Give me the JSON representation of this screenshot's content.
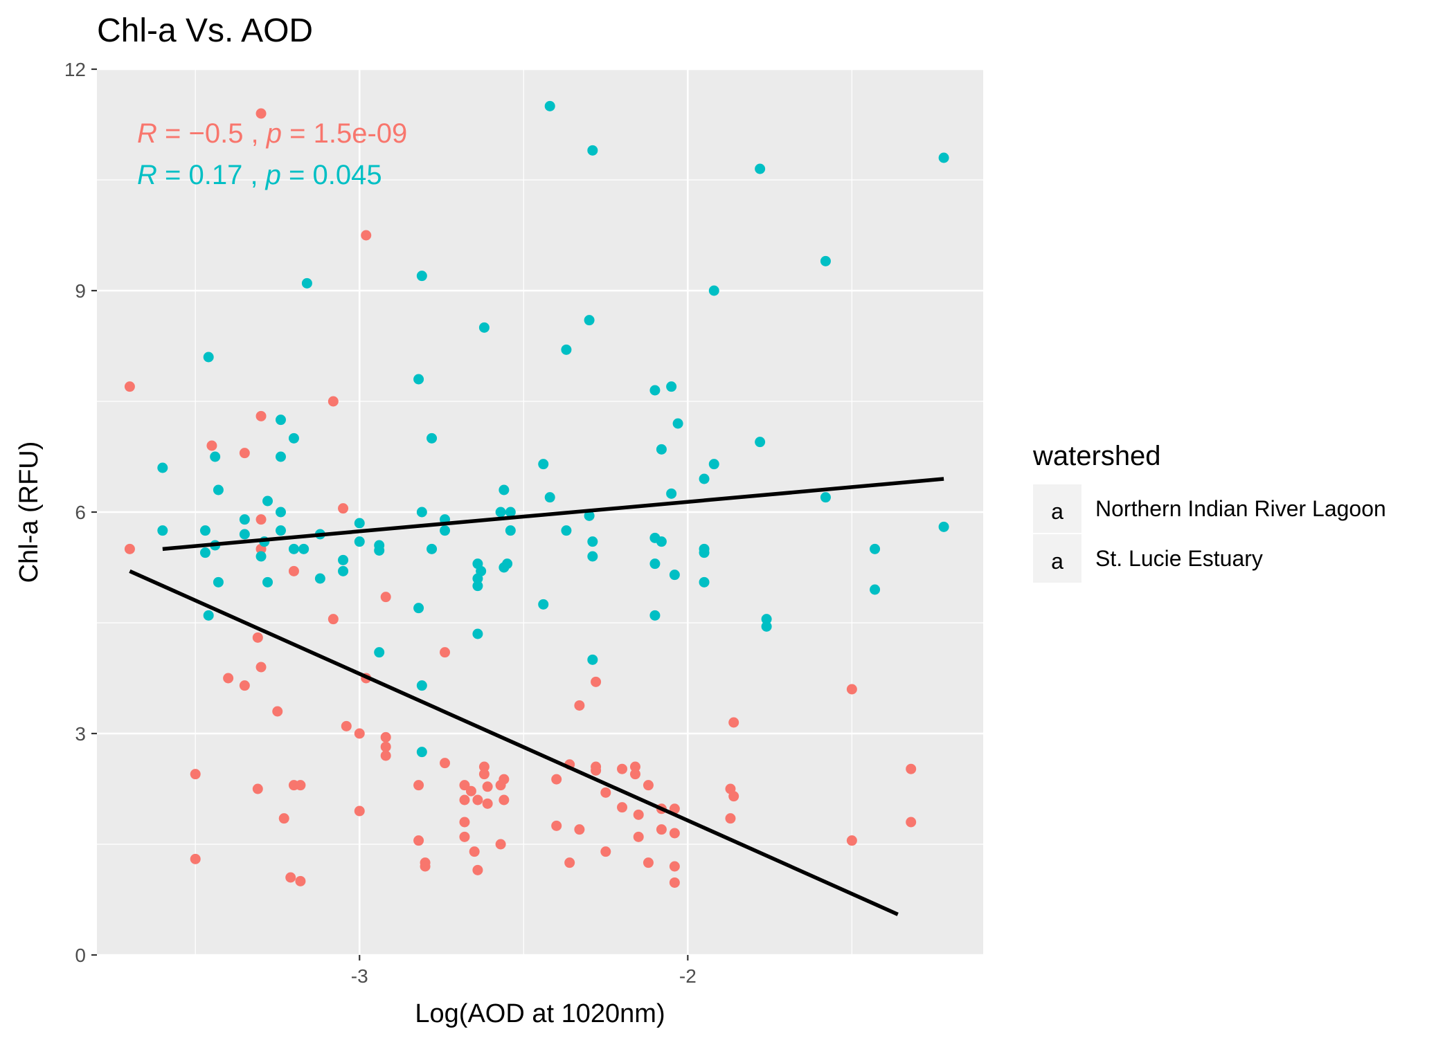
{
  "chart_data": {
    "type": "scatter",
    "title": "Chl-a Vs. AOD",
    "xlabel": "Log(AOD at 1020nm)",
    "ylabel": "Chl-a (RFU)",
    "xlim": [
      -3.8,
      -1.1
    ],
    "ylim": [
      0,
      12
    ],
    "x_ticks": [
      -3,
      -2
    ],
    "x_tick_labels": [
      "-3",
      "-2"
    ],
    "y_ticks": [
      0,
      3,
      6,
      9,
      12
    ],
    "y_tick_labels": [
      "0",
      "3",
      "6",
      "9",
      "12"
    ],
    "grid": true,
    "legend": {
      "title": "watershed",
      "position": "right",
      "key_glyph": "a"
    },
    "annotations": [
      {
        "series": "Northern Indian River Lagoon",
        "r_symbol": "R",
        "r_part": " = −0.5 , ",
        "p_symbol": "p",
        "p_part": " = 1.5e-09"
      },
      {
        "series": "St. Lucie Estuary",
        "r_symbol": "R",
        "r_part": " = 0.17 , ",
        "p_symbol": "p",
        "p_part": " = 0.045"
      }
    ],
    "series": [
      {
        "name": "Northern Indian River Lagoon",
        "color": "#F8766D",
        "fit": {
          "x": [
            -3.7,
            -1.36
          ],
          "y": [
            5.2,
            0.55
          ]
        },
        "points": [
          [
            -3.7,
            7.7
          ],
          [
            -3.7,
            5.5
          ],
          [
            -3.5,
            2.45
          ],
          [
            -3.5,
            1.3
          ],
          [
            -3.45,
            6.9
          ],
          [
            -3.35,
            6.8
          ],
          [
            -3.35,
            3.65
          ],
          [
            -3.3,
            7.3
          ],
          [
            -3.3,
            5.9
          ],
          [
            -3.3,
            5.5
          ],
          [
            -3.31,
            4.3
          ],
          [
            -3.3,
            3.9
          ],
          [
            -3.31,
            2.25
          ],
          [
            -3.25,
            3.3
          ],
          [
            -3.23,
            1.85
          ],
          [
            -3.2,
            5.2
          ],
          [
            -3.2,
            2.3
          ],
          [
            -3.18,
            2.3
          ],
          [
            -3.21,
            1.05
          ],
          [
            -3.18,
            1.0
          ],
          [
            -3.3,
            11.4
          ],
          [
            -3.08,
            7.5
          ],
          [
            -3.08,
            4.55
          ],
          [
            -3.05,
            6.05
          ],
          [
            -3.04,
            3.1
          ],
          [
            -3.0,
            3.0
          ],
          [
            -3.0,
            1.95
          ],
          [
            -2.98,
            9.75
          ],
          [
            -2.98,
            3.75
          ],
          [
            -2.92,
            4.85
          ],
          [
            -2.92,
            2.95
          ],
          [
            -2.92,
            2.82
          ],
          [
            -2.92,
            2.7
          ],
          [
            -3.4,
            3.75
          ],
          [
            -2.82,
            2.3
          ],
          [
            -2.82,
            1.55
          ],
          [
            -2.8,
            1.25
          ],
          [
            -2.8,
            1.2
          ],
          [
            -2.74,
            4.1
          ],
          [
            -2.74,
            2.6
          ],
          [
            -2.68,
            2.3
          ],
          [
            -2.66,
            2.22
          ],
          [
            -2.64,
            2.1
          ],
          [
            -2.68,
            2.1
          ],
          [
            -2.68,
            1.8
          ],
          [
            -2.68,
            1.6
          ],
          [
            -2.65,
            1.4
          ],
          [
            -2.64,
            1.15
          ],
          [
            -2.62,
            2.55
          ],
          [
            -2.62,
            2.45
          ],
          [
            -2.61,
            2.28
          ],
          [
            -2.61,
            2.05
          ],
          [
            -2.56,
            2.38
          ],
          [
            -2.57,
            2.3
          ],
          [
            -2.56,
            2.1
          ],
          [
            -2.57,
            1.5
          ],
          [
            -2.4,
            2.38
          ],
          [
            -2.4,
            1.75
          ],
          [
            -2.36,
            2.58
          ],
          [
            -2.36,
            1.25
          ],
          [
            -2.33,
            3.38
          ],
          [
            -2.33,
            1.7
          ],
          [
            -2.28,
            3.7
          ],
          [
            -2.28,
            2.55
          ],
          [
            -2.28,
            2.5
          ],
          [
            -2.25,
            2.2
          ],
          [
            -2.25,
            1.4
          ],
          [
            -2.2,
            2.52
          ],
          [
            -2.2,
            2.0
          ],
          [
            -2.16,
            2.55
          ],
          [
            -2.16,
            2.45
          ],
          [
            -2.15,
            1.9
          ],
          [
            -2.15,
            1.6
          ],
          [
            -2.12,
            2.3
          ],
          [
            -2.12,
            1.25
          ],
          [
            -2.08,
            1.98
          ],
          [
            -2.08,
            1.7
          ],
          [
            -2.04,
            1.98
          ],
          [
            -2.04,
            1.65
          ],
          [
            -2.04,
            1.2
          ],
          [
            -2.04,
            0.98
          ],
          [
            -1.86,
            3.15
          ],
          [
            -1.87,
            2.25
          ],
          [
            -1.86,
            2.15
          ],
          [
            -1.87,
            1.85
          ],
          [
            -1.5,
            3.6
          ],
          [
            -1.5,
            1.55
          ],
          [
            -1.32,
            2.52
          ],
          [
            -1.32,
            1.8
          ]
        ]
      },
      {
        "name": "St. Lucie Estuary",
        "color": "#00BFC4",
        "fit": {
          "x": [
            -3.6,
            -1.22
          ],
          "y": [
            5.5,
            6.45
          ]
        },
        "points": [
          [
            -3.6,
            6.6
          ],
          [
            -3.6,
            5.75
          ],
          [
            -3.46,
            8.1
          ],
          [
            -3.47,
            5.75
          ],
          [
            -3.47,
            5.45
          ],
          [
            -3.44,
            6.75
          ],
          [
            -3.43,
            6.3
          ],
          [
            -3.44,
            5.55
          ],
          [
            -3.43,
            5.05
          ],
          [
            -3.46,
            4.6
          ],
          [
            -3.35,
            5.9
          ],
          [
            -3.35,
            5.7
          ],
          [
            -3.29,
            5.6
          ],
          [
            -3.3,
            5.4
          ],
          [
            -3.28,
            6.15
          ],
          [
            -3.28,
            5.05
          ],
          [
            -3.24,
            7.25
          ],
          [
            -3.24,
            6.75
          ],
          [
            -3.24,
            6.0
          ],
          [
            -3.24,
            5.75
          ],
          [
            -3.2,
            7.0
          ],
          [
            -3.2,
            5.5
          ],
          [
            -3.16,
            9.1
          ],
          [
            -3.17,
            5.5
          ],
          [
            -3.12,
            5.7
          ],
          [
            -3.12,
            5.1
          ],
          [
            -3.05,
            5.35
          ],
          [
            -3.05,
            5.2
          ],
          [
            -3.0,
            5.85
          ],
          [
            -3.0,
            5.6
          ],
          [
            -2.94,
            5.55
          ],
          [
            -2.94,
            5.48
          ],
          [
            -2.94,
            4.1
          ],
          [
            -2.81,
            9.2
          ],
          [
            -2.82,
            7.8
          ],
          [
            -2.81,
            6.0
          ],
          [
            -2.82,
            4.7
          ],
          [
            -2.81,
            3.65
          ],
          [
            -2.81,
            2.75
          ],
          [
            -2.78,
            7.0
          ],
          [
            -2.78,
            5.5
          ],
          [
            -2.74,
            5.9
          ],
          [
            -2.74,
            5.75
          ],
          [
            -2.64,
            5.3
          ],
          [
            -2.64,
            5.1
          ],
          [
            -2.63,
            5.2
          ],
          [
            -2.64,
            5.0
          ],
          [
            -2.64,
            4.35
          ],
          [
            -2.62,
            8.5
          ],
          [
            -2.57,
            6.0
          ],
          [
            -2.56,
            5.25
          ],
          [
            -2.55,
            5.3
          ],
          [
            -2.56,
            6.3
          ],
          [
            -2.54,
            6.0
          ],
          [
            -2.54,
            5.75
          ],
          [
            -2.44,
            6.65
          ],
          [
            -2.44,
            4.75
          ],
          [
            -2.42,
            11.5
          ],
          [
            -2.42,
            6.2
          ],
          [
            -2.37,
            8.2
          ],
          [
            -2.37,
            5.75
          ],
          [
            -2.3,
            8.6
          ],
          [
            -2.3,
            5.95
          ],
          [
            -2.29,
            10.9
          ],
          [
            -2.29,
            5.6
          ],
          [
            -2.29,
            5.4
          ],
          [
            -2.29,
            4.0
          ],
          [
            -2.1,
            7.65
          ],
          [
            -2.1,
            5.65
          ],
          [
            -2.1,
            5.3
          ],
          [
            -2.1,
            4.6
          ],
          [
            -2.08,
            6.85
          ],
          [
            -2.08,
            5.6
          ],
          [
            -2.05,
            7.7
          ],
          [
            -2.05,
            6.25
          ],
          [
            -2.03,
            7.2
          ],
          [
            -2.04,
            5.15
          ],
          [
            -1.95,
            6.45
          ],
          [
            -1.95,
            5.5
          ],
          [
            -1.95,
            5.45
          ],
          [
            -1.95,
            5.05
          ],
          [
            -1.92,
            9.0
          ],
          [
            -1.92,
            6.65
          ],
          [
            -1.78,
            10.65
          ],
          [
            -1.78,
            6.95
          ],
          [
            -1.76,
            4.55
          ],
          [
            -1.76,
            4.45
          ],
          [
            -1.58,
            9.4
          ],
          [
            -1.58,
            6.2
          ],
          [
            -1.43,
            5.5
          ],
          [
            -1.43,
            4.95
          ],
          [
            -1.22,
            10.8
          ],
          [
            -1.22,
            5.8
          ]
        ]
      }
    ]
  }
}
